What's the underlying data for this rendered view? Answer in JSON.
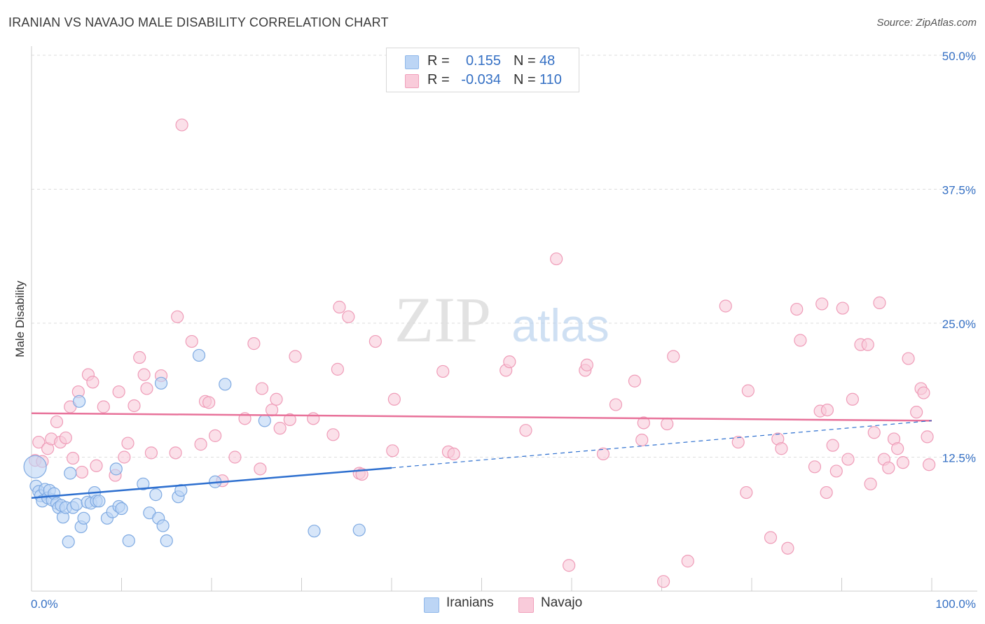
{
  "title": "IRANIAN VS NAVAJO MALE DISABILITY CORRELATION CHART",
  "source": "Source: ZipAtlas.com",
  "watermark": {
    "zip": "ZIP",
    "atlas": "atlas"
  },
  "legend": {
    "rows": [
      {
        "name": "Iranians",
        "r_label": "R =",
        "r_value": "0.155",
        "n_label": "N =",
        "n_value": "48",
        "color": "#8fb8ea",
        "fill": "#bcd5f5"
      },
      {
        "name": "Navajo",
        "r_label": "R =",
        "r_value": "-0.034",
        "n_label": "N =",
        "n_value": "110",
        "color": "#f0a0bb",
        "fill": "#f9cbda"
      }
    ]
  },
  "colors": {
    "blue_line": "#2d6fcf",
    "pink_line": "#e8729a",
    "axis_text": "#3570c4",
    "grid": "#dddddd"
  },
  "chart_data": {
    "type": "scatter",
    "title": "IRANIAN VS NAVAJO MALE DISABILITY CORRELATION CHART",
    "ylabel": "Male Disability",
    "xlabel": "",
    "xlim": [
      0,
      100
    ],
    "ylim": [
      0,
      50
    ],
    "x_tick_labels": [
      "0.0%",
      "100.0%"
    ],
    "y_ticks": [
      12.5,
      25.0,
      37.5,
      50.0
    ],
    "y_tick_labels": [
      "12.5%",
      "25.0%",
      "37.5%",
      "50.0%"
    ],
    "legend_position": "top-center",
    "series": [
      {
        "name": "Iranians",
        "r": 0.155,
        "n": 48,
        "trend": {
          "x_start": 0,
          "y_start": 8.7,
          "x_end": 40,
          "y_end": 11.5,
          "dashed_to_x": 100,
          "dashed_to_y": 15.9
        },
        "points": [
          [
            0.4,
            11.6
          ],
          [
            0.5,
            9.8
          ],
          [
            0.8,
            9.3
          ],
          [
            1.0,
            8.9
          ],
          [
            1.2,
            8.4
          ],
          [
            1.5,
            9.5
          ],
          [
            1.8,
            8.7
          ],
          [
            2.0,
            9.4
          ],
          [
            2.3,
            8.5
          ],
          [
            2.5,
            9.1
          ],
          [
            2.8,
            8.2
          ],
          [
            3.0,
            7.8
          ],
          [
            3.3,
            8.0
          ],
          [
            3.5,
            6.9
          ],
          [
            3.8,
            7.8
          ],
          [
            4.1,
            4.6
          ],
          [
            4.3,
            11.0
          ],
          [
            4.6,
            7.8
          ],
          [
            5.0,
            8.1
          ],
          [
            5.3,
            17.7
          ],
          [
            5.5,
            6.0
          ],
          [
            5.8,
            6.8
          ],
          [
            6.2,
            8.3
          ],
          [
            6.6,
            8.2
          ],
          [
            7.0,
            9.2
          ],
          [
            7.2,
            8.4
          ],
          [
            7.5,
            8.4
          ],
          [
            8.4,
            6.8
          ],
          [
            9.0,
            7.4
          ],
          [
            9.4,
            11.4
          ],
          [
            9.7,
            7.9
          ],
          [
            10.0,
            7.7
          ],
          [
            10.8,
            4.7
          ],
          [
            12.4,
            10.0
          ],
          [
            13.1,
            7.3
          ],
          [
            13.8,
            9.0
          ],
          [
            14.1,
            6.8
          ],
          [
            14.4,
            19.4
          ],
          [
            14.6,
            6.1
          ],
          [
            15.0,
            4.7
          ],
          [
            16.3,
            8.8
          ],
          [
            16.6,
            9.4
          ],
          [
            18.6,
            22.0
          ],
          [
            20.4,
            10.2
          ],
          [
            21.5,
            19.3
          ],
          [
            25.9,
            15.9
          ],
          [
            31.4,
            5.6
          ],
          [
            36.4,
            5.7
          ]
        ]
      },
      {
        "name": "Navajo",
        "r": -0.034,
        "n": 110,
        "trend": {
          "x_start": 0,
          "y_start": 16.6,
          "x_end": 100,
          "y_end": 15.9
        },
        "points": [
          [
            0.4,
            12.2
          ],
          [
            0.8,
            13.9
          ],
          [
            1.2,
            12.1
          ],
          [
            1.8,
            13.3
          ],
          [
            2.2,
            14.2
          ],
          [
            2.8,
            15.8
          ],
          [
            3.2,
            13.9
          ],
          [
            3.8,
            14.3
          ],
          [
            4.3,
            17.2
          ],
          [
            4.6,
            12.4
          ],
          [
            5.2,
            18.6
          ],
          [
            5.6,
            11.1
          ],
          [
            6.3,
            20.2
          ],
          [
            6.8,
            19.5
          ],
          [
            7.2,
            11.7
          ],
          [
            8.0,
            17.2
          ],
          [
            9.3,
            10.8
          ],
          [
            9.7,
            18.6
          ],
          [
            10.3,
            12.5
          ],
          [
            10.7,
            13.8
          ],
          [
            11.4,
            17.3
          ],
          [
            12.0,
            21.8
          ],
          [
            12.5,
            20.2
          ],
          [
            12.8,
            18.9
          ],
          [
            13.3,
            12.9
          ],
          [
            14.4,
            20.1
          ],
          [
            16.0,
            12.9
          ],
          [
            16.2,
            25.6
          ],
          [
            16.7,
            43.5
          ],
          [
            17.8,
            23.3
          ],
          [
            18.8,
            13.7
          ],
          [
            19.3,
            17.7
          ],
          [
            19.7,
            17.6
          ],
          [
            20.4,
            14.5
          ],
          [
            21.2,
            10.3
          ],
          [
            22.6,
            12.5
          ],
          [
            23.7,
            16.1
          ],
          [
            24.7,
            23.1
          ],
          [
            25.4,
            11.4
          ],
          [
            25.6,
            18.9
          ],
          [
            26.7,
            16.9
          ],
          [
            27.2,
            17.9
          ],
          [
            27.6,
            15.2
          ],
          [
            28.7,
            16.0
          ],
          [
            29.3,
            21.9
          ],
          [
            31.3,
            16.1
          ],
          [
            33.5,
            14.6
          ],
          [
            34.0,
            20.7
          ],
          [
            34.2,
            26.5
          ],
          [
            35.2,
            25.6
          ],
          [
            36.4,
            11.0
          ],
          [
            36.7,
            10.9
          ],
          [
            38.2,
            23.3
          ],
          [
            40.1,
            13.1
          ],
          [
            40.3,
            17.9
          ],
          [
            45.7,
            20.5
          ],
          [
            46.3,
            13.0
          ],
          [
            46.9,
            12.8
          ],
          [
            52.7,
            20.6
          ],
          [
            53.1,
            21.4
          ],
          [
            54.9,
            15.0
          ],
          [
            58.3,
            31.0
          ],
          [
            59.7,
            2.4
          ],
          [
            61.5,
            20.6
          ],
          [
            61.7,
            21.1
          ],
          [
            63.5,
            12.8
          ],
          [
            64.9,
            17.4
          ],
          [
            67.0,
            19.6
          ],
          [
            67.8,
            14.1
          ],
          [
            68.0,
            15.7
          ],
          [
            70.2,
            0.9
          ],
          [
            70.6,
            15.6
          ],
          [
            71.3,
            21.9
          ],
          [
            72.9,
            2.8
          ],
          [
            77.1,
            26.6
          ],
          [
            78.5,
            13.9
          ],
          [
            79.4,
            9.2
          ],
          [
            79.6,
            18.7
          ],
          [
            82.1,
            5.0
          ],
          [
            82.9,
            14.2
          ],
          [
            83.3,
            13.3
          ],
          [
            84.0,
            4.0
          ],
          [
            85.0,
            26.3
          ],
          [
            85.4,
            23.4
          ],
          [
            87.0,
            11.6
          ],
          [
            87.6,
            16.8
          ],
          [
            87.8,
            26.8
          ],
          [
            88.3,
            9.2
          ],
          [
            88.4,
            16.9
          ],
          [
            89.0,
            13.6
          ],
          [
            89.4,
            11.2
          ],
          [
            90.1,
            26.4
          ],
          [
            90.7,
            12.3
          ],
          [
            91.2,
            17.9
          ],
          [
            92.1,
            23.0
          ],
          [
            92.9,
            23.0
          ],
          [
            93.2,
            10.0
          ],
          [
            93.6,
            14.8
          ],
          [
            94.2,
            26.9
          ],
          [
            94.7,
            12.3
          ],
          [
            95.2,
            11.5
          ],
          [
            95.8,
            14.2
          ],
          [
            96.2,
            13.3
          ],
          [
            96.8,
            12.0
          ],
          [
            97.4,
            21.7
          ],
          [
            98.3,
            16.7
          ],
          [
            98.8,
            18.9
          ],
          [
            99.1,
            18.5
          ],
          [
            99.5,
            14.4
          ],
          [
            99.7,
            11.8
          ]
        ]
      }
    ]
  }
}
